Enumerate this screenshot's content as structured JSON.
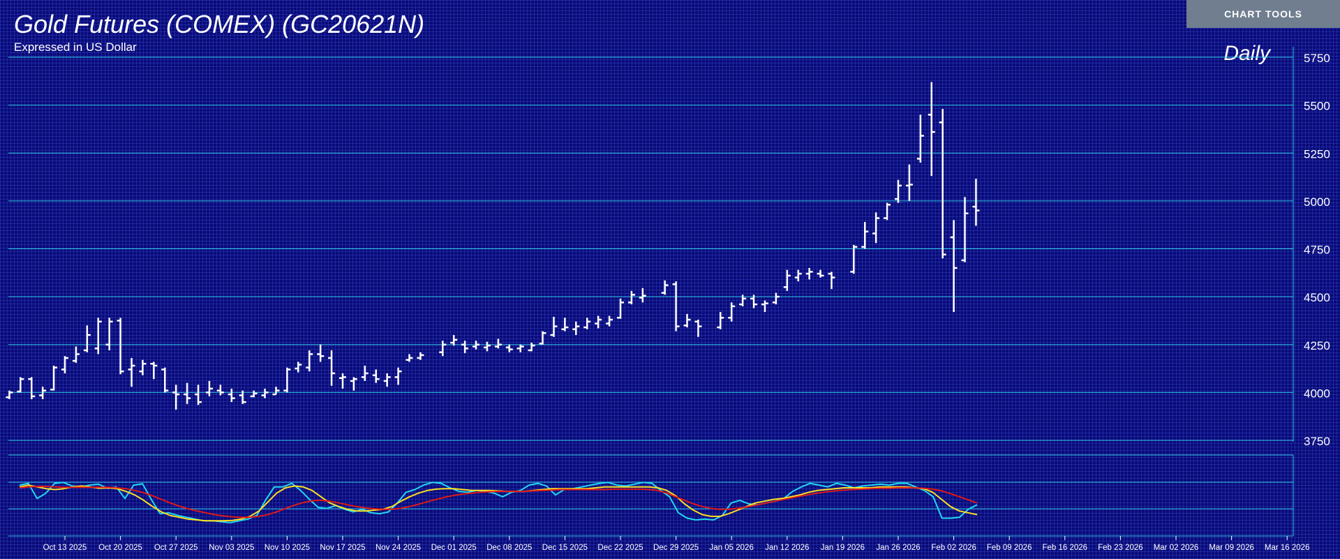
{
  "header": {
    "title": "Gold Futures (COMEX) (GC20621N)",
    "subtitle": "Expressed in US Dollar",
    "tools_label": "CHART TOOLS",
    "period_label": "Daily"
  },
  "colors": {
    "background": "#0a0a78",
    "grid": "#3c5adc",
    "gridline_major": "#2ec8e6",
    "bars": "#ffffff",
    "button": "#707e90",
    "osc_fast": "#22d8f0",
    "osc_signal": "#ffe020",
    "osc_slow": "#e01818"
  },
  "chart_data": [
    {
      "type": "ohlc",
      "series_name": "",
      "y_ticks": [
        5750,
        5500,
        5250,
        5000,
        4750,
        4500,
        4250,
        4000,
        3750
      ],
      "ylim": [
        3750,
        5750
      ],
      "x_tick_labels": [
        "Oct 13 2025",
        "Oct 20 2025",
        "Oct 27 2025",
        "Nov 03 2025",
        "Nov 10 2025",
        "Nov 17 2025",
        "Nov 24 2025",
        "Dec 01 2025",
        "Dec 08 2025",
        "Dec 15 2025",
        "Dec 22 2025",
        "Dec 29 2025",
        "Jan 05 2026",
        "Jan 12 2026",
        "Jan 19 2026",
        "Jan 26 2026",
        "Feb 02 2026",
        "Feb 09 2026",
        "Feb 16 2026",
        "Feb 23 2026",
        "Mar 02 2026",
        "Mar 09 2026",
        "Mar 16 2026"
      ],
      "grid": true,
      "bars": [
        {
          "date": "Oct 06 2025",
          "o": 3975,
          "h": 4010,
          "l": 3965,
          "c": 4000
        },
        {
          "date": "Oct 07 2025",
          "o": 4005,
          "h": 4080,
          "l": 4000,
          "c": 4070
        },
        {
          "date": "Oct 08 2025",
          "o": 4070,
          "h": 4080,
          "l": 3965,
          "c": 3980
        },
        {
          "date": "Oct 09 2025",
          "o": 3985,
          "h": 4030,
          "l": 3965,
          "c": 4010
        },
        {
          "date": "Oct 10 2025",
          "o": 4015,
          "h": 4140,
          "l": 4010,
          "c": 4130
        },
        {
          "date": "Oct 13 2025",
          "o": 4120,
          "h": 4190,
          "l": 4100,
          "c": 4180
        },
        {
          "date": "Oct 14 2025",
          "o": 4165,
          "h": 4240,
          "l": 4155,
          "c": 4200
        },
        {
          "date": "Oct 15 2025",
          "o": 4220,
          "h": 4350,
          "l": 4210,
          "c": 4300
        },
        {
          "date": "Oct 16 2025",
          "o": 4230,
          "h": 4390,
          "l": 4200,
          "c": 4370
        },
        {
          "date": "Oct 17 2025",
          "o": 4250,
          "h": 4390,
          "l": 4220,
          "c": 4370
        },
        {
          "date": "Oct 20 2025",
          "o": 4375,
          "h": 4390,
          "l": 4095,
          "c": 4110
        },
        {
          "date": "Oct 21 2025",
          "o": 4120,
          "h": 4180,
          "l": 4030,
          "c": 4140
        },
        {
          "date": "Oct 22 2025",
          "o": 4110,
          "h": 4170,
          "l": 4090,
          "c": 4150
        },
        {
          "date": "Oct 23 2025",
          "o": 4150,
          "h": 4160,
          "l": 4070,
          "c": 4140
        },
        {
          "date": "Oct 24 2025",
          "o": 4120,
          "h": 4130,
          "l": 4000,
          "c": 4010
        },
        {
          "date": "Oct 27 2025",
          "o": 4000,
          "h": 4040,
          "l": 3910,
          "c": 3990
        },
        {
          "date": "Oct 28 2025",
          "o": 3990,
          "h": 4050,
          "l": 3940,
          "c": 3970
        },
        {
          "date": "Oct 29 2025",
          "o": 3990,
          "h": 4040,
          "l": 3935,
          "c": 3950
        },
        {
          "date": "Oct 30 2025",
          "o": 4000,
          "h": 4060,
          "l": 3980,
          "c": 4020
        },
        {
          "date": "Oct 31 2025",
          "o": 4010,
          "h": 4040,
          "l": 3985,
          "c": 4000
        },
        {
          "date": "Nov 03 2025",
          "o": 3990,
          "h": 4020,
          "l": 3950,
          "c": 3970
        },
        {
          "date": "Nov 04 2025",
          "o": 3985,
          "h": 4010,
          "l": 3940,
          "c": 3950
        },
        {
          "date": "Nov 05 2025",
          "o": 3980,
          "h": 4010,
          "l": 3975,
          "c": 3995
        },
        {
          "date": "Nov 06 2025",
          "o": 3985,
          "h": 4020,
          "l": 3970,
          "c": 4000
        },
        {
          "date": "Nov 07 2025",
          "o": 3990,
          "h": 4030,
          "l": 3990,
          "c": 4010
        },
        {
          "date": "Nov 10 2025",
          "o": 4010,
          "h": 4130,
          "l": 4000,
          "c": 4120
        },
        {
          "date": "Nov 11 2025",
          "o": 4125,
          "h": 4160,
          "l": 4105,
          "c": 4145
        },
        {
          "date": "Nov 12 2025",
          "o": 4130,
          "h": 4220,
          "l": 4110,
          "c": 4200
        },
        {
          "date": "Nov 13 2025",
          "o": 4200,
          "h": 4250,
          "l": 4160,
          "c": 4190
        },
        {
          "date": "Nov 14 2025",
          "o": 4180,
          "h": 4220,
          "l": 4035,
          "c": 4100
        },
        {
          "date": "Nov 17 2025",
          "o": 4075,
          "h": 4100,
          "l": 4020,
          "c": 4080
        },
        {
          "date": "Nov 18 2025",
          "o": 4060,
          "h": 4080,
          "l": 4010,
          "c": 4070
        },
        {
          "date": "Nov 19 2025",
          "o": 4080,
          "h": 4140,
          "l": 4060,
          "c": 4100
        },
        {
          "date": "Nov 20 2025",
          "o": 4090,
          "h": 4120,
          "l": 4050,
          "c": 4070
        },
        {
          "date": "Nov 21 2025",
          "o": 4060,
          "h": 4100,
          "l": 4030,
          "c": 4080
        },
        {
          "date": "Nov 24 2025",
          "o": 4080,
          "h": 4130,
          "l": 4040,
          "c": 4110
        },
        {
          "date": "Nov 25 2025",
          "o": 4170,
          "h": 4200,
          "l": 4160,
          "c": 4180
        },
        {
          "date": "Nov 26 2025",
          "o": 4180,
          "h": 4210,
          "l": 4170,
          "c": 4195
        },
        {
          "date": "Nov 28 2025",
          "o": 4210,
          "h": 4270,
          "l": 4190,
          "c": 4250
        },
        {
          "date": "Dec 01 2025",
          "o": 4260,
          "h": 4300,
          "l": 4245,
          "c": 4275
        },
        {
          "date": "Dec 02 2025",
          "o": 4250,
          "h": 4270,
          "l": 4205,
          "c": 4230
        },
        {
          "date": "Dec 03 2025",
          "o": 4240,
          "h": 4270,
          "l": 4225,
          "c": 4250
        },
        {
          "date": "Dec 04 2025",
          "o": 4235,
          "h": 4265,
          "l": 4215,
          "c": 4245
        },
        {
          "date": "Dec 05 2025",
          "o": 4240,
          "h": 4280,
          "l": 4230,
          "c": 4250
        },
        {
          "date": "Dec 08 2025",
          "o": 4235,
          "h": 4250,
          "l": 4210,
          "c": 4225
        },
        {
          "date": "Dec 09 2025",
          "o": 4230,
          "h": 4250,
          "l": 4210,
          "c": 4240
        },
        {
          "date": "Dec 10 2025",
          "o": 4220,
          "h": 4260,
          "l": 4215,
          "c": 4245
        },
        {
          "date": "Dec 11 2025",
          "o": 4255,
          "h": 4320,
          "l": 4250,
          "c": 4310
        },
        {
          "date": "Dec 12 2025",
          "o": 4300,
          "h": 4395,
          "l": 4290,
          "c": 4345
        },
        {
          "date": "Dec 15 2025",
          "o": 4330,
          "h": 4390,
          "l": 4320,
          "c": 4340
        },
        {
          "date": "Dec 16 2025",
          "o": 4330,
          "h": 4370,
          "l": 4300,
          "c": 4345
        },
        {
          "date": "Dec 17 2025",
          "o": 4340,
          "h": 4390,
          "l": 4330,
          "c": 4370
        },
        {
          "date": "Dec 18 2025",
          "o": 4360,
          "h": 4400,
          "l": 4335,
          "c": 4380
        },
        {
          "date": "Dec 19 2025",
          "o": 4360,
          "h": 4400,
          "l": 4345,
          "c": 4380
        },
        {
          "date": "Dec 22 2025",
          "o": 4390,
          "h": 4490,
          "l": 4385,
          "c": 4470
        },
        {
          "date": "Dec 23 2025",
          "o": 4470,
          "h": 4530,
          "l": 4460,
          "c": 4510
        },
        {
          "date": "Dec 24 2025",
          "o": 4495,
          "h": 4545,
          "l": 4470,
          "c": 4505
        },
        {
          "date": "Dec 26 2025",
          "o": 4520,
          "h": 4585,
          "l": 4510,
          "c": 4560
        },
        {
          "date": "Dec 29 2025",
          "o": 4565,
          "h": 4580,
          "l": 4320,
          "c": 4345
        },
        {
          "date": "Dec 30 2025",
          "o": 4350,
          "h": 4410,
          "l": 4340,
          "c": 4380
        },
        {
          "date": "Dec 31 2025",
          "o": 4370,
          "h": 4380,
          "l": 4290,
          "c": 4345
        },
        {
          "date": "Jan 02 2026",
          "o": 4340,
          "h": 4420,
          "l": 4330,
          "c": 4390
        },
        {
          "date": "Jan 05 2026",
          "o": 4390,
          "h": 4470,
          "l": 4370,
          "c": 4450
        },
        {
          "date": "Jan 06 2026",
          "o": 4460,
          "h": 4510,
          "l": 4450,
          "c": 4490
        },
        {
          "date": "Jan 07 2026",
          "o": 4490,
          "h": 4510,
          "l": 4440,
          "c": 4460
        },
        {
          "date": "Jan 08 2026",
          "o": 4460,
          "h": 4480,
          "l": 4420,
          "c": 4465
        },
        {
          "date": "Jan 09 2026",
          "o": 4470,
          "h": 4520,
          "l": 4460,
          "c": 4500
        },
        {
          "date": "Jan 12 2026",
          "o": 4550,
          "h": 4640,
          "l": 4530,
          "c": 4610
        },
        {
          "date": "Jan 13 2026",
          "o": 4600,
          "h": 4640,
          "l": 4580,
          "c": 4620
        },
        {
          "date": "Jan 14 2026",
          "o": 4620,
          "h": 4650,
          "l": 4590,
          "c": 4630
        },
        {
          "date": "Jan 15 2026",
          "o": 4620,
          "h": 4640,
          "l": 4600,
          "c": 4610
        },
        {
          "date": "Jan 16 2026",
          "o": 4620,
          "h": 4630,
          "l": 4540,
          "c": 4600
        },
        {
          "date": "Jan 20 2026",
          "o": 4630,
          "h": 4770,
          "l": 4620,
          "c": 4760
        },
        {
          "date": "Jan 21 2026",
          "o": 4760,
          "h": 4890,
          "l": 4750,
          "c": 4840
        },
        {
          "date": "Jan 22 2026",
          "o": 4830,
          "h": 4940,
          "l": 4780,
          "c": 4910
        },
        {
          "date": "Jan 23 2026",
          "o": 4910,
          "h": 4990,
          "l": 4900,
          "c": 4980
        },
        {
          "date": "Jan 26 2026",
          "o": 5010,
          "h": 5110,
          "l": 4990,
          "c": 5080
        },
        {
          "date": "Jan 27 2026",
          "o": 5080,
          "h": 5190,
          "l": 5000,
          "c": 5085
        },
        {
          "date": "Jan 28 2026",
          "o": 5220,
          "h": 5450,
          "l": 5200,
          "c": 5340
        },
        {
          "date": "Jan 29 2026",
          "o": 5450,
          "h": 5620,
          "l": 5130,
          "c": 5360
        },
        {
          "date": "Jan 30 2026",
          "o": 5410,
          "h": 5480,
          "l": 4700,
          "c": 4720
        },
        {
          "date": "Feb 02 2026",
          "o": 4810,
          "h": 4900,
          "l": 4420,
          "c": 4650
        },
        {
          "date": "Feb 03 2026",
          "o": 4690,
          "h": 5020,
          "l": 4680,
          "c": 4935
        },
        {
          "date": "Feb 04 2026",
          "o": 4970,
          "h": 5115,
          "l": 4870,
          "c": 4950
        }
      ]
    },
    {
      "type": "line",
      "lines": [
        {
          "color_key": "osc_fast",
          "values": [
            92,
            96,
            62,
            74,
            96,
            98,
            90,
            88,
            92,
            94,
            85,
            88,
            62,
            92,
            95,
            60,
            28,
            30,
            24,
            20,
            16,
            12,
            12,
            10,
            8,
            12,
            16,
            24,
            58,
            88,
            88,
            96,
            80,
            60,
            42,
            40,
            46,
            38,
            32,
            38,
            30,
            28,
            32,
            52,
            76,
            82,
            92,
            98,
            96,
            86,
            78,
            76,
            80,
            78,
            74,
            66,
            76,
            80,
            92,
            96,
            90,
            70,
            82,
            84,
            88,
            92,
            96,
            98,
            92,
            90,
            94,
            98,
            96,
            80,
            66,
            30,
            18,
            14,
            16,
            14,
            24,
            52,
            58,
            50,
            48,
            52,
            56,
            62,
            78,
            88,
            96,
            92,
            88,
            96,
            92,
            86,
            90,
            92,
            94,
            92,
            96,
            96,
            88,
            80,
            66,
            18,
            18,
            20,
            38,
            48
          ]
        },
        {
          "color_key": "osc_signal",
          "values": [
            88,
            92,
            88,
            84,
            82,
            84,
            88,
            90,
            88,
            85,
            86,
            84,
            78,
            70,
            58,
            44,
            32,
            24,
            20,
            16,
            14,
            12,
            12,
            12,
            13,
            16,
            22,
            34,
            54,
            74,
            86,
            90,
            88,
            80,
            66,
            52,
            44,
            38,
            34,
            34,
            36,
            38,
            44,
            56,
            66,
            74,
            80,
            83,
            84,
            84,
            82,
            80,
            80,
            80,
            79,
            78,
            78,
            78,
            80,
            82,
            84,
            84,
            84,
            84,
            84,
            86,
            88,
            88,
            88,
            88,
            88,
            88,
            86,
            80,
            68,
            50,
            36,
            26,
            22,
            22,
            28,
            36,
            44,
            52,
            56,
            60,
            62,
            66,
            70,
            76,
            80,
            82,
            84,
            86,
            86,
            86,
            86,
            88,
            88,
            88,
            88,
            86,
            84,
            76,
            60,
            44,
            34,
            30,
            26
          ]
        },
        {
          "color_key": "osc_slow",
          "values": [
            86,
            88,
            89,
            89,
            88,
            87,
            87,
            87,
            87,
            87,
            87,
            86,
            84,
            80,
            75,
            68,
            60,
            52,
            45,
            39,
            34,
            30,
            26,
            23,
            21,
            20,
            20,
            22,
            26,
            32,
            40,
            47,
            53,
            57,
            58,
            56,
            52,
            48,
            44,
            41,
            39,
            38,
            38,
            40,
            44,
            49,
            55,
            60,
            65,
            69,
            72,
            74,
            76,
            77,
            78,
            78,
            78,
            78,
            79,
            80,
            81,
            82,
            82,
            82,
            82,
            82,
            82,
            83,
            83,
            83,
            83,
            82,
            80,
            74,
            66,
            58,
            50,
            44,
            40,
            38,
            38,
            40,
            43,
            47,
            51,
            55,
            59,
            63,
            67,
            71,
            74,
            77,
            79,
            81,
            82,
            83,
            84,
            85,
            85,
            86,
            86,
            86,
            85,
            83,
            79,
            73,
            66,
            59,
            52
          ]
        }
      ]
    }
  ]
}
